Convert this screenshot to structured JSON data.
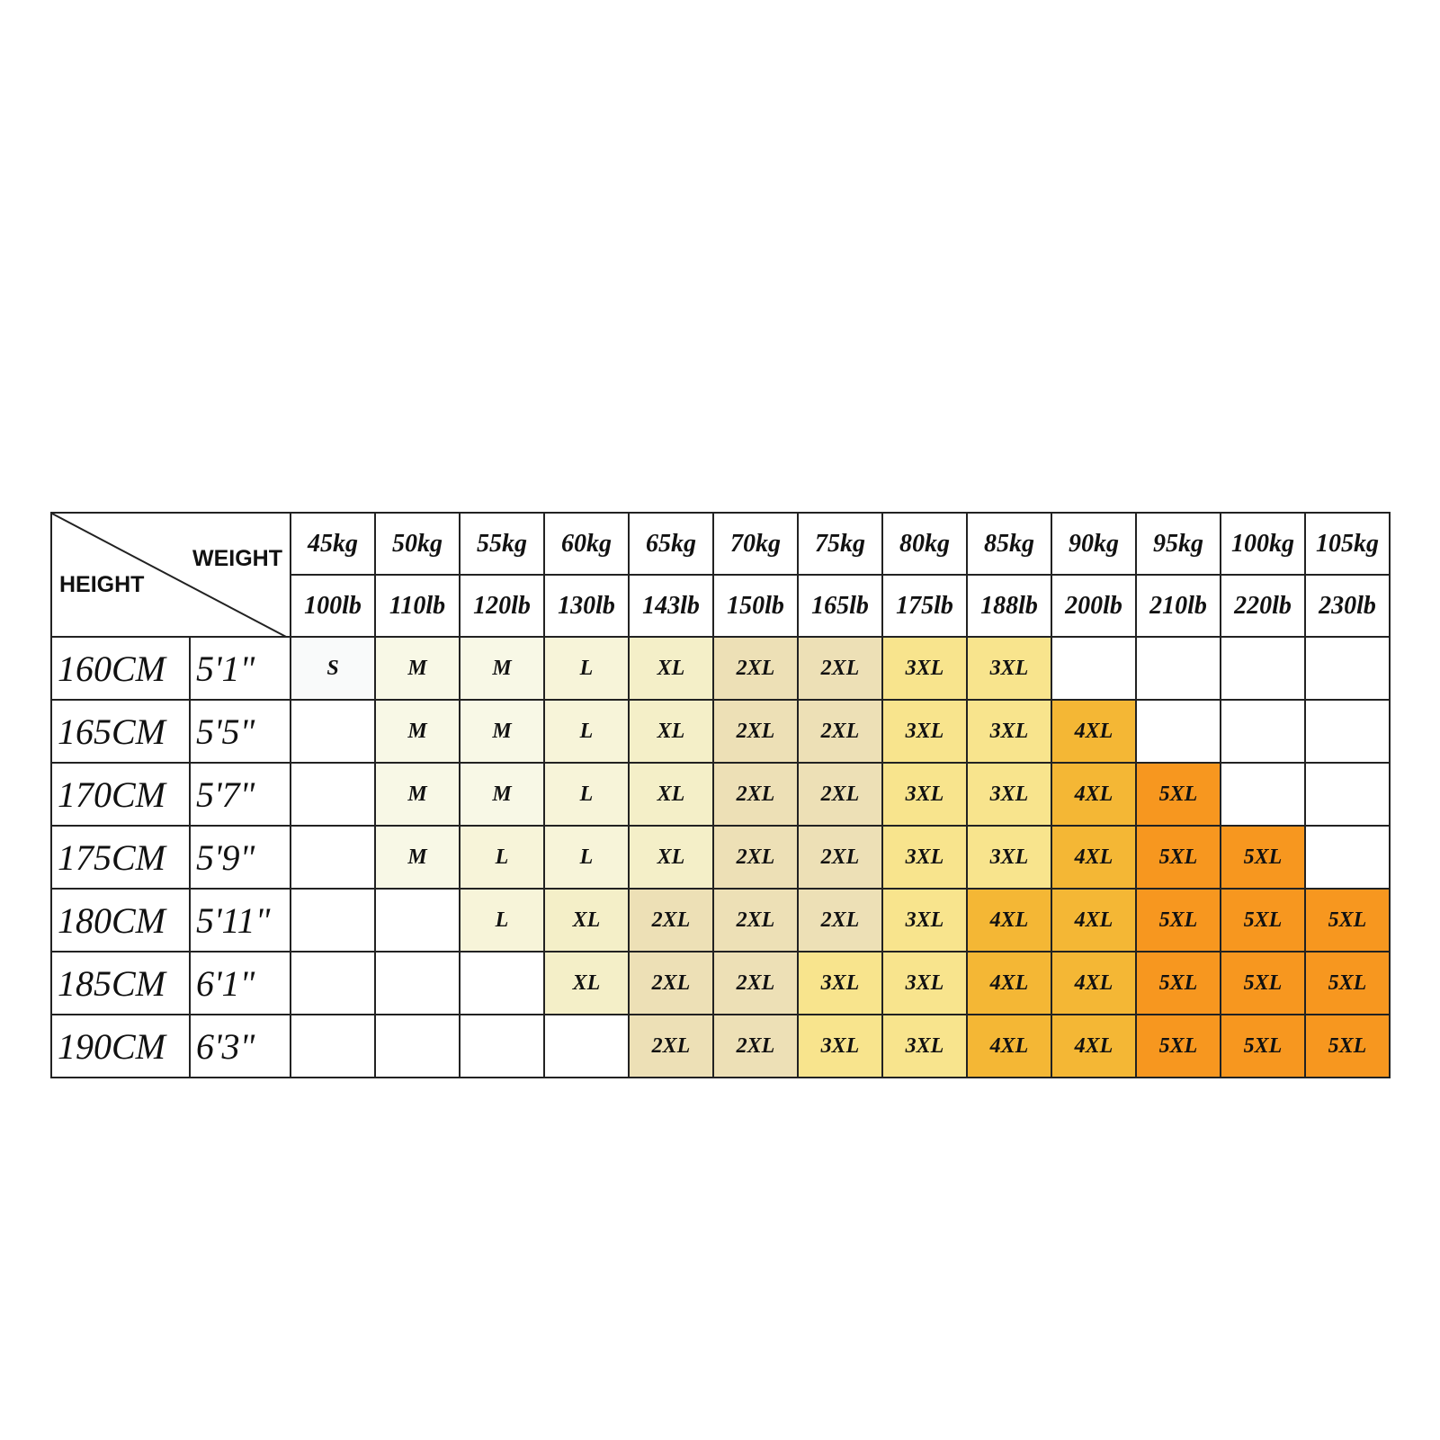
{
  "header": {
    "weight_label": "WEIGHT",
    "height_label": "HEIGHT",
    "kg": [
      "45kg",
      "50kg",
      "55kg",
      "60kg",
      "65kg",
      "70kg",
      "75kg",
      "80kg",
      "85kg",
      "90kg",
      "95kg",
      "100kg",
      "105kg"
    ],
    "lb": [
      "100lb",
      "110lb",
      "120lb",
      "130lb",
      "143lb",
      "150lb",
      "165lb",
      "175lb",
      "188lb",
      "200lb",
      "210lb",
      "220lb",
      "230lb"
    ]
  },
  "rows": [
    {
      "cm": "160CM",
      "ft": "5'1\"",
      "sizes": [
        "S",
        "M",
        "M",
        "L",
        "XL",
        "2XL",
        "2XL",
        "3XL",
        "3XL",
        "",
        "",
        "",
        ""
      ]
    },
    {
      "cm": "165CM",
      "ft": "5'5\"",
      "sizes": [
        "",
        "M",
        "M",
        "L",
        "XL",
        "2XL",
        "2XL",
        "3XL",
        "3XL",
        "4XL",
        "",
        "",
        ""
      ]
    },
    {
      "cm": "170CM",
      "ft": "5'7\"",
      "sizes": [
        "",
        "M",
        "M",
        "L",
        "XL",
        "2XL",
        "2XL",
        "3XL",
        "3XL",
        "4XL",
        "5XL",
        "",
        ""
      ]
    },
    {
      "cm": "175CM",
      "ft": "5'9\"",
      "sizes": [
        "",
        "M",
        "L",
        "L",
        "XL",
        "2XL",
        "2XL",
        "3XL",
        "3XL",
        "4XL",
        "5XL",
        "5XL",
        ""
      ]
    },
    {
      "cm": "180CM",
      "ft": "5'11\"",
      "sizes": [
        "",
        "",
        "L",
        "XL",
        "2XL",
        "2XL",
        "2XL",
        "3XL",
        "4XL",
        "4XL",
        "5XL",
        "5XL",
        "5XL"
      ]
    },
    {
      "cm": "185CM",
      "ft": "6'1\"",
      "sizes": [
        "",
        "",
        "",
        "XL",
        "2XL",
        "2XL",
        "3XL",
        "3XL",
        "4XL",
        "4XL",
        "5XL",
        "5XL",
        "5XL"
      ]
    },
    {
      "cm": "190CM",
      "ft": "6'3\"",
      "sizes": [
        "",
        "",
        "",
        "",
        "2XL",
        "2XL",
        "3XL",
        "3XL",
        "4XL",
        "4XL",
        "5XL",
        "5XL",
        "5XL"
      ]
    }
  ],
  "size_colors": {
    "S": "#f9fafa",
    "M": "#f8f8e6",
    "L": "#f7f4d9",
    "XL": "#f4efc8",
    "2XL": "#ede0b6",
    "3XL": "#f8e48d",
    "4XL": "#f4b735",
    "5XL": "#f7971f"
  }
}
